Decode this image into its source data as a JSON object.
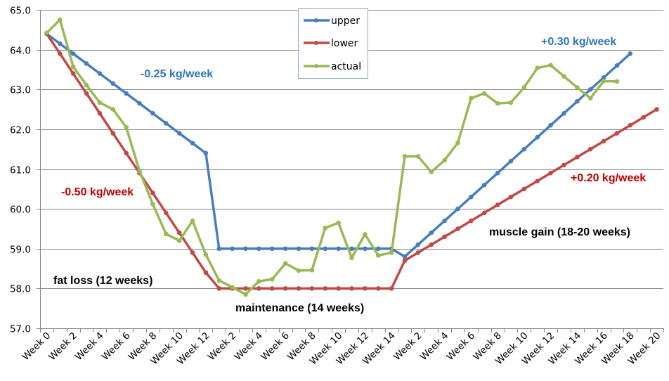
{
  "chart_data": {
    "type": "line",
    "title": "",
    "xlabel": "",
    "ylabel": "",
    "ylim": [
      57.0,
      65.0
    ],
    "y_ticks": [
      "57.0",
      "58.0",
      "59.0",
      "60.0",
      "61.0",
      "62.0",
      "63.0",
      "64.0",
      "65.0"
    ],
    "y_tick_values": [
      57,
      58,
      59,
      60,
      61,
      62,
      63,
      64,
      65
    ],
    "grid": true,
    "category_count": 47,
    "x_tick_label_every": 2,
    "x_tick_labels": [
      "Week 0",
      "Week 2",
      "Week 4",
      "Week 6",
      "Week 8",
      "Week 10",
      "Week 12",
      "Week 2",
      "Week 4",
      "Week 6",
      "Week 8",
      "Week 10",
      "Week 12",
      "Week 14",
      "Week 2",
      "Week 4",
      "Week 6",
      "Week 8",
      "Week 10",
      "Week 12",
      "Week 14",
      "Week 16",
      "Week 18",
      "Week 20"
    ],
    "legend_position": "top-center",
    "series": [
      {
        "name": "upper",
        "color": "#4a7ebb",
        "values": [
          64.4,
          64.15,
          63.9,
          63.65,
          63.4,
          63.15,
          62.9,
          62.65,
          62.4,
          62.15,
          61.9,
          61.65,
          61.4,
          59.0,
          59.0,
          59.0,
          59.0,
          59.0,
          59.0,
          59.0,
          59.0,
          59.0,
          59.0,
          59.0,
          59.0,
          59.0,
          59.0,
          58.8,
          59.1,
          59.4,
          59.7,
          60.0,
          60.3,
          60.6,
          60.9,
          61.2,
          61.5,
          61.8,
          62.1,
          62.4,
          62.7,
          63.0,
          63.3,
          63.6,
          63.9,
          null,
          null
        ]
      },
      {
        "name": "lower",
        "color": "#be4b48",
        "values": [
          64.4,
          63.9,
          63.4,
          62.9,
          62.4,
          61.9,
          61.4,
          60.9,
          60.4,
          59.9,
          59.4,
          58.9,
          58.4,
          58.0,
          58.0,
          58.0,
          58.0,
          58.0,
          58.0,
          58.0,
          58.0,
          58.0,
          58.0,
          58.0,
          58.0,
          58.0,
          58.0,
          58.7,
          58.9,
          59.1,
          59.3,
          59.5,
          59.7,
          59.9,
          60.1,
          60.3,
          60.5,
          60.7,
          60.9,
          61.1,
          61.3,
          61.5,
          61.7,
          61.9,
          62.1,
          62.3,
          62.5
        ]
      },
      {
        "name": "actual",
        "color": "#98b954",
        "values": [
          64.42,
          64.75,
          63.57,
          63.11,
          62.67,
          62.5,
          62.05,
          60.95,
          60.12,
          59.37,
          59.2,
          59.7,
          58.85,
          58.2,
          58.03,
          57.85,
          58.18,
          58.23,
          58.63,
          58.45,
          58.46,
          59.52,
          59.65,
          58.77,
          59.36,
          58.83,
          58.9,
          61.32,
          61.32,
          60.93,
          61.22,
          61.66,
          62.78,
          62.9,
          62.65,
          62.67,
          63.05,
          63.54,
          63.61,
          63.33,
          63.05,
          62.78,
          63.21,
          63.2,
          null,
          null,
          null
        ]
      }
    ],
    "annotations": [
      {
        "text": "-0.25 kg/week",
        "color": "#2e75b6"
      },
      {
        "text": "-0.50 kg/week",
        "color": "#c00000"
      },
      {
        "text": "+0.30 kg/week",
        "color": "#2e75b6"
      },
      {
        "text": "+0.20 kg/week",
        "color": "#c00000"
      },
      {
        "text": "fat loss (12 weeks)",
        "color": "#000000"
      },
      {
        "text": "maintenance (14 weeks)",
        "color": "#000000"
      },
      {
        "text": "muscle gain (18-20 weeks)",
        "color": "#000000"
      }
    ]
  }
}
